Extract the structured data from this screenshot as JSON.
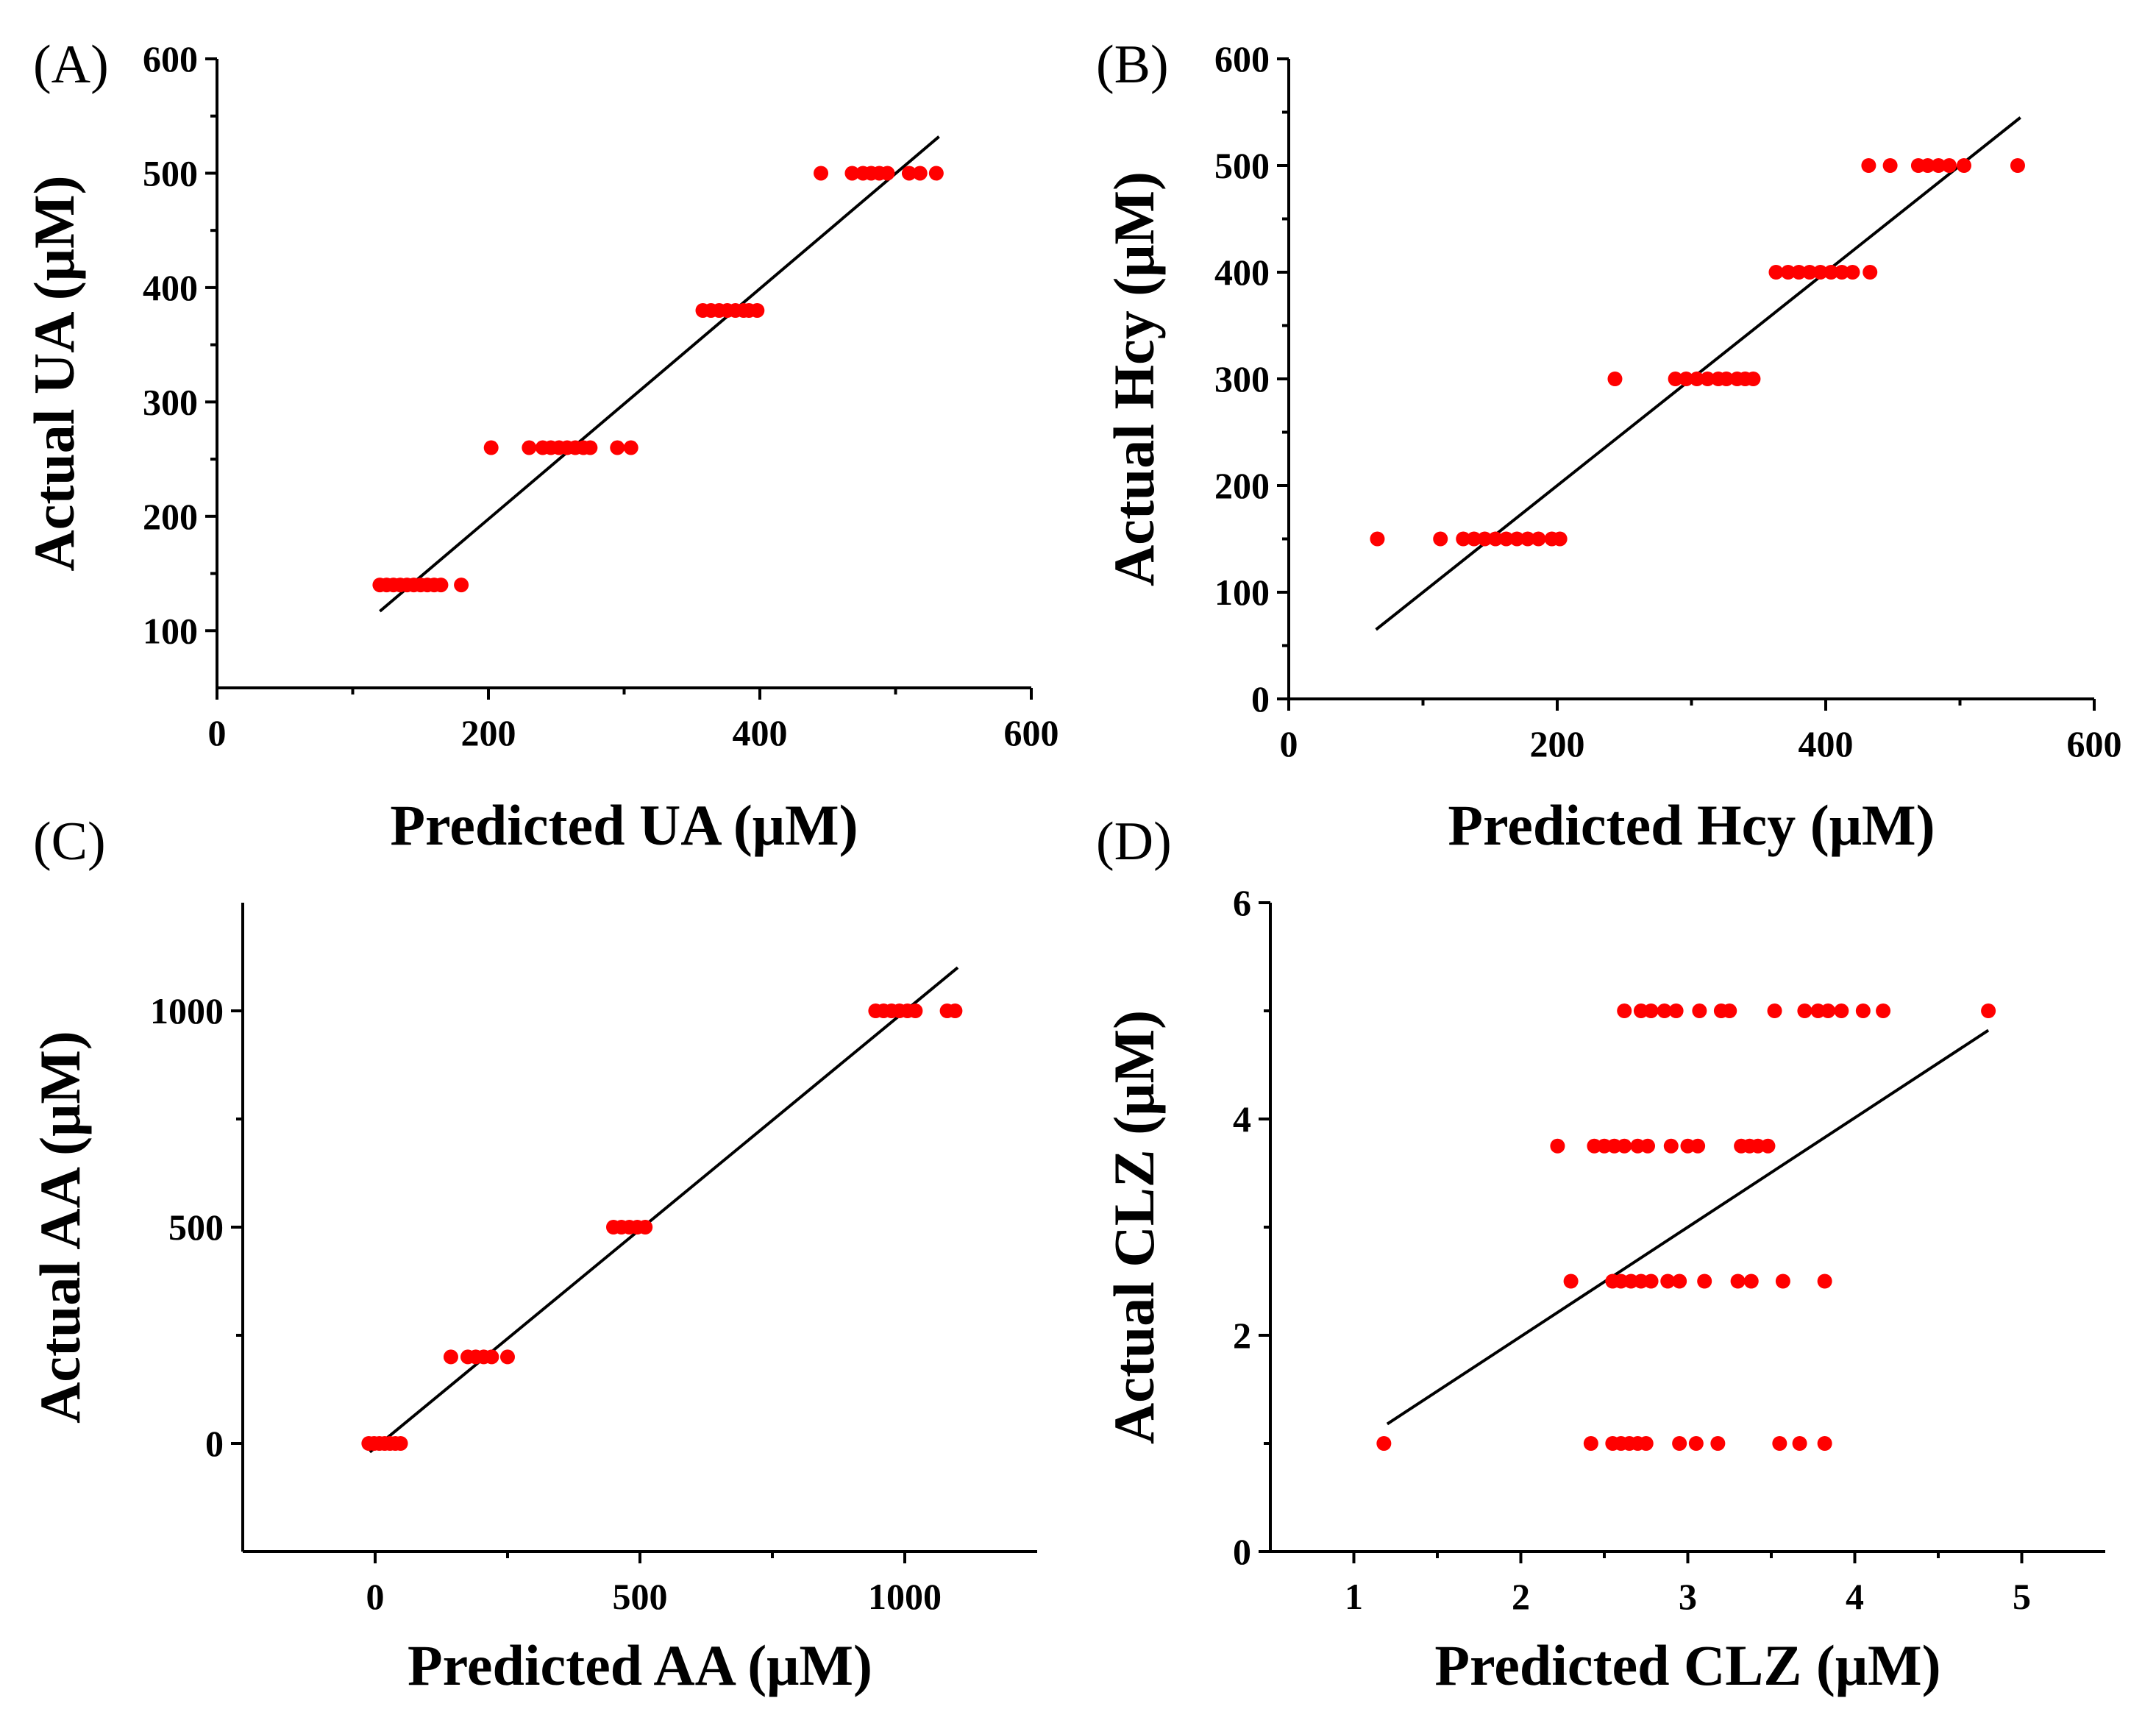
{
  "figure": {
    "point_color": "#ff0000",
    "line_color": "#000000"
  },
  "chart_data": [
    {
      "panel": "(A)",
      "type": "scatter",
      "title": "",
      "xlabel": "Predicted UA (μM)",
      "ylabel": "Actual UA (μM)",
      "xlim": [
        0,
        600
      ],
      "ylim": [
        50,
        600
      ],
      "xticks": [
        0,
        200,
        400,
        600
      ],
      "yticks": [
        100,
        200,
        300,
        400,
        500,
        600
      ],
      "xtick_labels": [
        "0",
        "200",
        "400",
        "600"
      ],
      "ytick_labels": [
        "100",
        "200",
        "300",
        "400",
        "500",
        "600"
      ],
      "fit_line": {
        "x": [
          120,
          532
        ],
        "y": [
          117,
          532
        ]
      },
      "series": [
        {
          "name": "UA 140",
          "actual": 140,
          "predicted": [
            120,
            125,
            130,
            135,
            140,
            145,
            150,
            155,
            160,
            165,
            180
          ]
        },
        {
          "name": "UA 260",
          "actual": 260,
          "predicted": [
            202,
            230,
            240,
            246,
            252,
            258,
            264,
            270,
            275,
            295,
            305
          ]
        },
        {
          "name": "UA 380",
          "actual": 380,
          "predicted": [
            358,
            364,
            370,
            376,
            382,
            388,
            392,
            398
          ]
        },
        {
          "name": "UA 500",
          "actual": 500,
          "predicted": [
            445,
            468,
            476,
            482,
            488,
            494,
            510,
            518,
            530
          ]
        }
      ]
    },
    {
      "panel": "(B)",
      "type": "scatter",
      "title": "",
      "xlabel": "Predicted Hcy (μM)",
      "ylabel": "Actual Hcy (μM)",
      "xlim": [
        0,
        600
      ],
      "ylim": [
        0,
        600
      ],
      "xticks": [
        0,
        200,
        400,
        600
      ],
      "yticks": [
        0,
        100,
        200,
        300,
        400,
        500,
        600
      ],
      "xtick_labels": [
        "0",
        "200",
        "400",
        "600"
      ],
      "ytick_labels": [
        "0",
        "100",
        "200",
        "300",
        "400",
        "500",
        "600"
      ],
      "fit_line": {
        "x": [
          65,
          545
        ],
        "y": [
          65,
          545
        ]
      },
      "series": [
        {
          "name": "Hcy 150",
          "actual": 150,
          "predicted": [
            66,
            113,
            130,
            138,
            146,
            154,
            162,
            170,
            178,
            186,
            196,
            202
          ]
        },
        {
          "name": "Hcy 300",
          "actual": 300,
          "predicted": [
            243,
            288,
            296,
            304,
            312,
            320,
            326,
            334,
            340,
            346
          ]
        },
        {
          "name": "Hcy 400",
          "actual": 400,
          "predicted": [
            363,
            372,
            380,
            388,
            396,
            404,
            412,
            420,
            433
          ]
        },
        {
          "name": "Hcy 500",
          "actual": 500,
          "predicted": [
            432,
            448,
            469,
            476,
            484,
            492,
            503,
            543
          ]
        }
      ]
    },
    {
      "panel": "(C)",
      "type": "scatter",
      "title": "",
      "xlabel": "Predicted AA (μM)",
      "ylabel": "Actual AA (μM)",
      "xlim": [
        -250,
        1250
      ],
      "ylim": [
        -250,
        1250
      ],
      "xticks": [
        0,
        500,
        1000
      ],
      "yticks": [
        0,
        500,
        1000
      ],
      "xtick_labels": [
        "0",
        "500",
        "1000"
      ],
      "ytick_labels": [
        "0",
        "500",
        "1000"
      ],
      "fit_line": {
        "x": [
          -10,
          1100
        ],
        "y": [
          -20,
          1100
        ]
      },
      "series": [
        {
          "name": "AA 0",
          "actual": 0,
          "predicted": [
            -12,
            -2,
            8,
            18,
            28,
            38,
            48
          ]
        },
        {
          "name": "AA 200",
          "actual": 200,
          "predicted": [
            143,
            175,
            190,
            205,
            220,
            250
          ]
        },
        {
          "name": "AA 500",
          "actual": 500,
          "predicted": [
            450,
            465,
            480,
            495,
            510
          ]
        },
        {
          "name": "AA 1000",
          "actual": 1000,
          "predicted": [
            945,
            960,
            975,
            990,
            1005,
            1020,
            1080,
            1095
          ]
        }
      ]
    },
    {
      "panel": "(D)",
      "type": "scatter",
      "title": "",
      "xlabel": "Predicted CLZ (μM)",
      "ylabel": "Actual CLZ (μM)",
      "xlim": [
        0.5,
        5.5
      ],
      "ylim": [
        0,
        6
      ],
      "xticks": [
        1,
        2,
        3,
        4,
        5
      ],
      "yticks": [
        0,
        2,
        4,
        6
      ],
      "xtick_labels": [
        "1",
        "2",
        "3",
        "4",
        "5"
      ],
      "ytick_labels": [
        "0",
        "2",
        "4",
        "6"
      ],
      "fit_line": {
        "x": [
          1.2,
          4.8
        ],
        "y": [
          1.18,
          4.82
        ]
      },
      "series": [
        {
          "name": "CLZ 1",
          "actual": 1,
          "predicted": [
            1.18,
            2.42,
            2.55,
            2.6,
            2.65,
            2.7,
            2.75,
            2.95,
            3.05,
            3.18,
            3.55,
            3.67,
            3.82
          ]
        },
        {
          "name": "CLZ 2.5",
          "actual": 2.5,
          "predicted": [
            2.3,
            2.55,
            2.6,
            2.66,
            2.72,
            2.78,
            2.88,
            2.95,
            3.1,
            3.3,
            3.38,
            3.57,
            3.82
          ]
        },
        {
          "name": "CLZ 3.75",
          "actual": 3.75,
          "predicted": [
            2.22,
            2.44,
            2.5,
            2.56,
            2.62,
            2.7,
            2.76,
            2.9,
            3.0,
            3.06,
            3.32,
            3.37,
            3.42,
            3.48
          ]
        },
        {
          "name": "CLZ 5",
          "actual": 5,
          "predicted": [
            2.62,
            2.72,
            2.78,
            2.86,
            2.93,
            3.07,
            3.2,
            3.25,
            3.52,
            3.7,
            3.78,
            3.84,
            3.92,
            4.05,
            4.17,
            4.8
          ]
        }
      ]
    }
  ]
}
